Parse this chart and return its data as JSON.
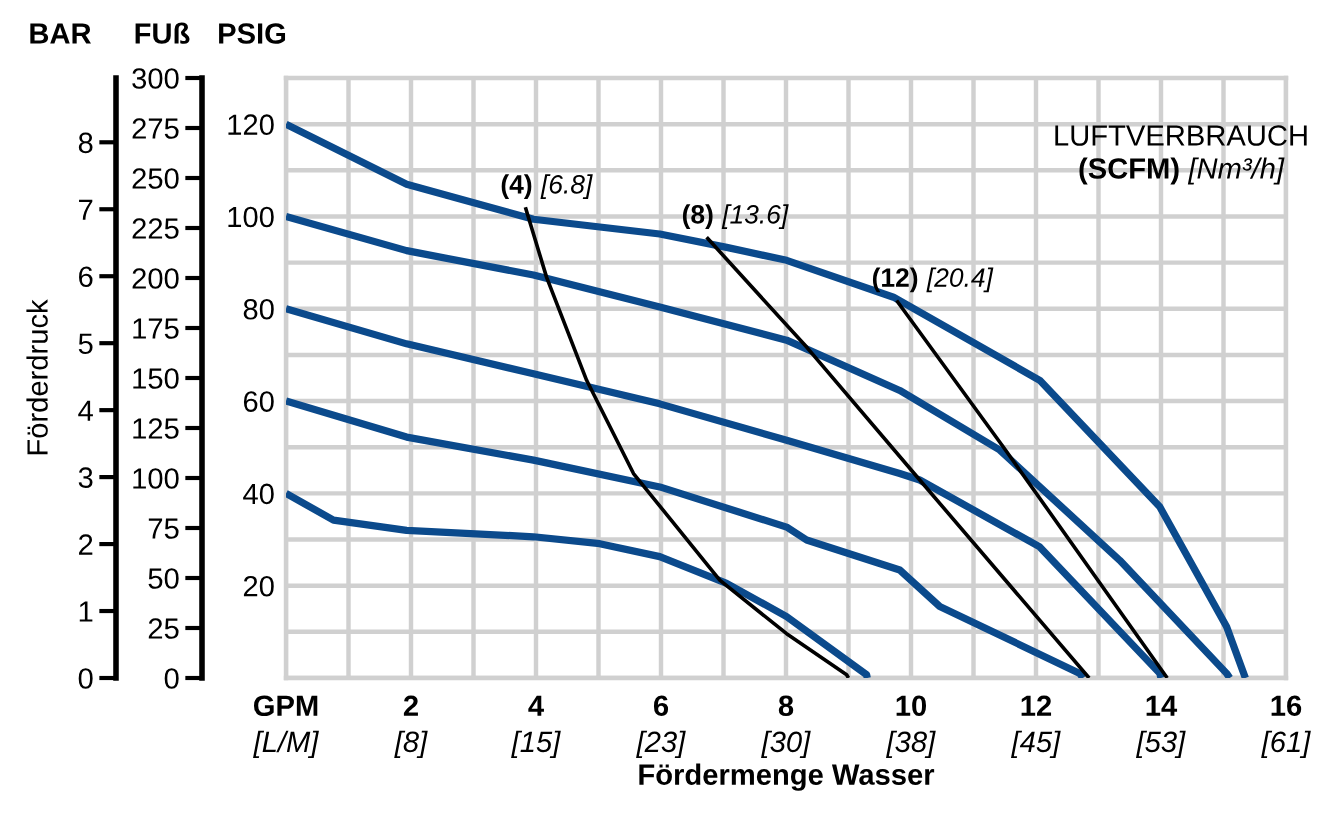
{
  "chart_data": {
    "type": "line",
    "xlabel": "Fördermenge Wasser",
    "ylabel": "PSIG",
    "y2label": "FUß",
    "y3label": "BAR",
    "annotations": [
      "LUFTVERBRAUCH",
      "(SCFM) [Nm³/h]",
      "Förderdruck"
    ],
    "xlim": [
      0,
      16
    ],
    "xticks": [
      {
        "value": 0,
        "label": "GPM"
      },
      {
        "value": 1,
        "label": null
      },
      2,
      {
        "value": 3,
        "label": null
      },
      4,
      {
        "value": 5,
        "label": null
      },
      6,
      {
        "value": 7,
        "label": null
      },
      8,
      {
        "value": 9,
        "label": null
      },
      10,
      {
        "value": 11,
        "label": null
      },
      12,
      {
        "value": 13,
        "label": null
      },
      14,
      {
        "value": 15,
        "label": null
      },
      16
    ],
    "x2lim": [
      0,
      60.57
    ],
    "x2ticks": [
      {
        "value": 0,
        "label": "[L/M]"
      },
      {
        "value": 7.57,
        "label": "[8]"
      },
      {
        "value": 15.14,
        "label": "[15]"
      },
      {
        "value": 22.71,
        "label": "[23]"
      },
      {
        "value": 30.28,
        "label": "[30]"
      },
      {
        "value": 37.85,
        "label": "[38]"
      },
      {
        "value": 45.42,
        "label": "[45]"
      },
      {
        "value": 52.99,
        "label": "[53]"
      },
      {
        "value": 60.57,
        "label": "[61]"
      }
    ],
    "ylim": [
      0,
      130
    ],
    "yticks": [
      {
        "value": 0,
        "label": null
      },
      {
        "value": 10,
        "label": null
      },
      20,
      {
        "value": 30,
        "label": null
      },
      40,
      {
        "value": 50,
        "label": null
      },
      60,
      {
        "value": 70,
        "label": null
      },
      80,
      {
        "value": 90,
        "label": null
      },
      100,
      {
        "value": 110,
        "label": null
      },
      120
    ],
    "y2lim": [
      0,
      300
    ],
    "y2ticks": [
      0,
      25,
      50,
      75,
      100,
      125,
      150,
      175,
      200,
      225,
      250,
      275,
      300
    ],
    "y3lim": [
      0,
      8.96
    ],
    "y3ticks": [
      0,
      1,
      2,
      3,
      4,
      5,
      6,
      7,
      8
    ],
    "grid": true,
    "series": [
      {
        "color": "#0b4a8c",
        "x": [
          0,
          1.93,
          3.96,
          5.98,
          7.05,
          8.01,
          9.72,
          12.06,
          13.98,
          15.05,
          15.35
        ],
        "values": [
          120,
          107,
          99.4,
          96.2,
          93.3,
          90.5,
          82.5,
          64.5,
          37.1,
          11.1,
          0
        ]
      },
      {
        "color": "#0b4a8c",
        "x": [
          0,
          1.93,
          3.96,
          5.98,
          8.01,
          9.82,
          11.42,
          13.34,
          15.05,
          15.1
        ],
        "values": [
          100,
          92.6,
          87.3,
          80.4,
          73.2,
          62.3,
          49.4,
          25.5,
          1,
          0
        ]
      },
      {
        "color": "#0b4a8c",
        "x": [
          0,
          1.93,
          3.96,
          5.98,
          8.01,
          9.82,
          10.14,
          12.06,
          13.98,
          14.0
        ],
        "values": [
          80,
          72.4,
          65.9,
          59.4,
          51.5,
          44.3,
          42.9,
          28.4,
          1,
          0
        ]
      },
      {
        "color": "#0b4a8c",
        "x": [
          0,
          1.93,
          3.96,
          5.98,
          8.01,
          8.33,
          9.82,
          10.46,
          12.7,
          12.75
        ],
        "values": [
          60,
          52.2,
          47.2,
          41.4,
          32.7,
          29.9,
          23.4,
          15.5,
          1,
          0
        ]
      },
      {
        "color": "#0b4a8c",
        "x": [
          0,
          0.76,
          1.93,
          3.96,
          5.02,
          5.98,
          7.05,
          8.01,
          9.29,
          9.3
        ],
        "values": [
          40,
          34.2,
          32,
          30.6,
          29.1,
          26.3,
          20.5,
          13.3,
          0.7,
          0
        ]
      },
      {
        "name": "(4) [6.8]",
        "color": "#000000",
        "x": [
          3.83,
          4.17,
          4.81,
          5.56,
          6.94,
          8.01,
          8.97,
          9.0
        ],
        "values": [
          102,
          86.8,
          64.5,
          44.3,
          21.2,
          9.6,
          0.7,
          0
        ]
      },
      {
        "name": "(8) [13.6]",
        "color": "#000000",
        "x": [
          6.73,
          8.33,
          10.14,
          12.85
        ],
        "values": [
          95.5,
          71.7,
          42.9,
          0
        ]
      },
      {
        "name": "(12) [20.4]",
        "color": "#000000",
        "x": [
          9.77,
          11.48,
          14.1
        ],
        "values": [
          81.8,
          50,
          0
        ]
      }
    ]
  }
}
